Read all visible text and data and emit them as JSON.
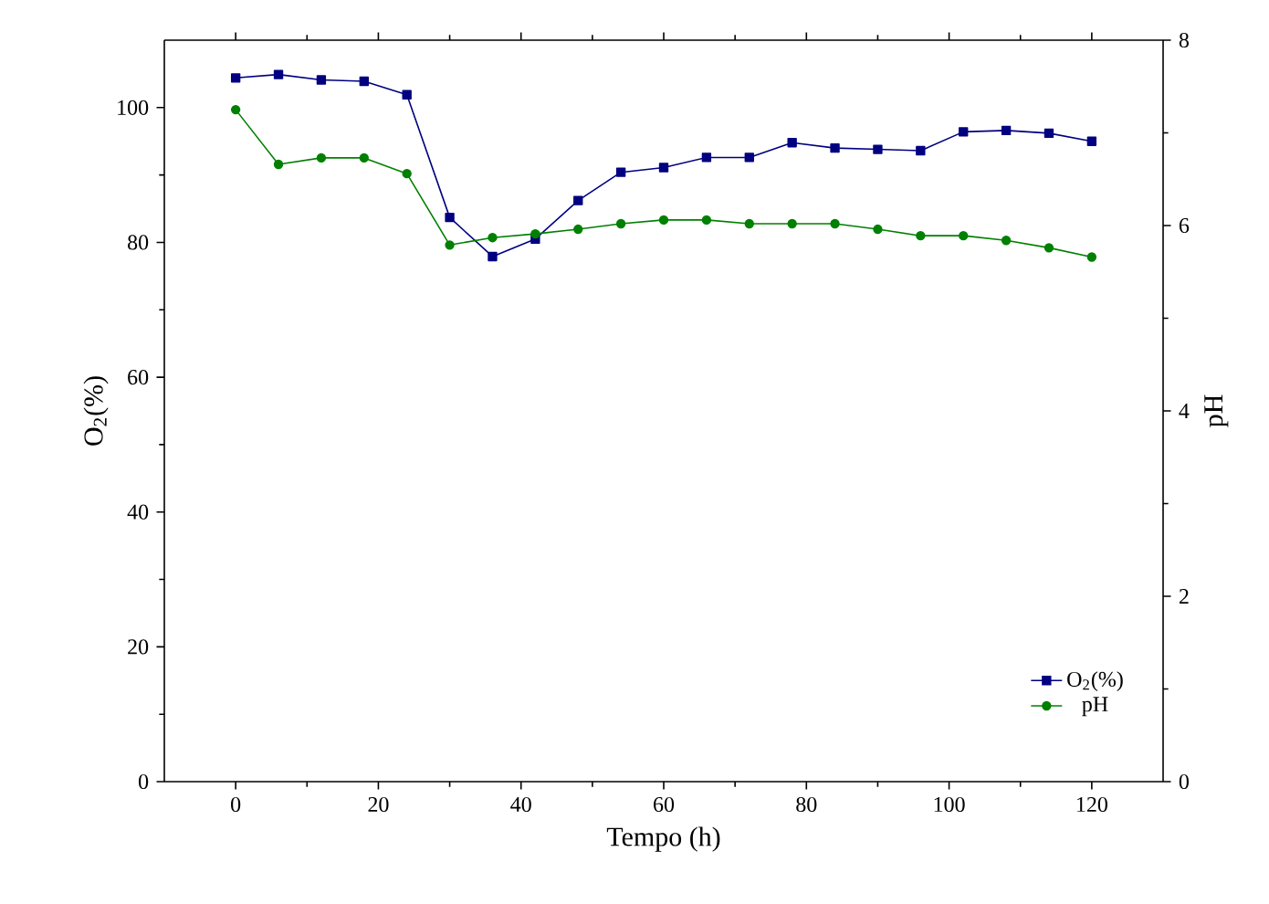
{
  "chart_data": {
    "type": "line",
    "xlabel": "Tempo (h)",
    "ylabel": "O$_{2}$(%)",
    "y2label": "pH",
    "x": [
      0,
      6,
      12,
      18,
      24,
      30,
      36,
      42,
      48,
      54,
      60,
      66,
      72,
      78,
      84,
      90,
      96,
      102,
      108,
      114,
      120
    ],
    "series": [
      {
        "name": "O$_{2}$(%)",
        "color": "#000080",
        "marker": "square",
        "values": [
          104.4,
          104.9,
          104.1,
          103.9,
          101.9,
          83.7,
          77.9,
          80.5,
          86.2,
          90.4,
          91.1,
          92.6,
          92.6,
          94.8,
          94.0,
          93.8,
          93.6,
          96.4,
          96.6,
          96.2,
          95.0
        ]
      },
      {
        "name": "pH",
        "color": "#008000",
        "marker": "circle",
        "axis": "y2",
        "values": [
          7.25,
          6.66,
          6.73,
          6.73,
          6.56,
          5.79,
          5.87,
          5.91,
          5.96,
          6.02,
          6.06,
          6.06,
          6.02,
          6.02,
          6.02,
          5.96,
          5.89,
          5.89,
          5.84,
          5.76,
          5.66
        ]
      }
    ],
    "xlim": [
      -10,
      130
    ],
    "xticks": [
      0,
      20,
      40,
      60,
      80,
      100,
      120
    ],
    "ylim": [
      0,
      110
    ],
    "yticks": [
      0,
      20,
      40,
      60,
      80,
      100
    ],
    "y2lim": [
      0,
      8
    ],
    "y2ticks": [
      0,
      2,
      4,
      6,
      8
    ],
    "grid": false,
    "legend": "bottom right",
    "line_style": "solid"
  }
}
